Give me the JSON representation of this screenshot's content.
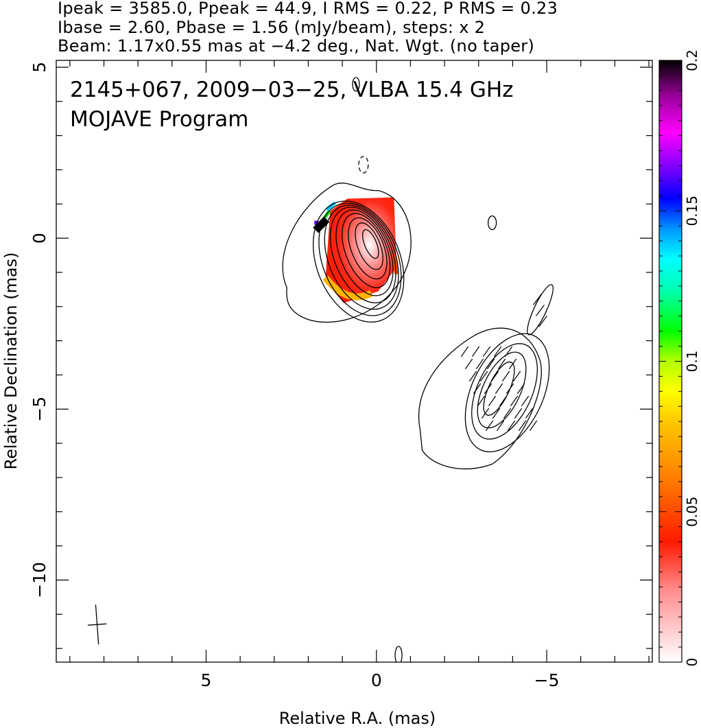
{
  "header": {
    "line1": "Ipeak = 3585.0, Ppeak = 44.9, I RMS = 0.22, P RMS = 0.23",
    "line2": "Ibase = 2.60, Pbase = 1.56 (mJy/beam), steps: x 2",
    "line3": "Beam: 1.17x0.55 mas at −4.2 deg., Nat. Wgt. (no taper)"
  },
  "chart_data": {
    "type": "heatmap",
    "title": "2145+067, 2009−03−25, VLBA 15.4 GHz",
    "subtitle": "MOJAVE Program",
    "xlabel": "Relative R.A. (mas)",
    "ylabel": "Relative Declination (mas)",
    "xlim": [
      9.4,
      -8.1
    ],
    "ylim": [
      -12.4,
      5.2
    ],
    "x_ticks": [
      {
        "value": 5,
        "label": "5"
      },
      {
        "value": 0,
        "label": "0"
      },
      {
        "value": -5,
        "label": "−5"
      }
    ],
    "y_ticks": [
      {
        "value": 5,
        "label": "5"
      },
      {
        "value": 0,
        "label": "0"
      },
      {
        "value": -5,
        "label": "−5"
      },
      {
        "value": -10,
        "label": "−10"
      }
    ],
    "colorbar": {
      "min": 0,
      "max": 0.2,
      "ticks": [
        {
          "value": 0,
          "label": "0"
        },
        {
          "value": 0.05,
          "label": "0.05"
        },
        {
          "value": 0.1,
          "label": "0.1"
        },
        {
          "value": 0.15,
          "label": "0.15"
        },
        {
          "value": 0.2,
          "label": "0.2"
        }
      ]
    },
    "core_component": {
      "ra": 0.05,
      "dec": -0.05,
      "contours": [
        {
          "w": 0.35,
          "h": 0.9
        },
        {
          "w": 0.65,
          "h": 1.45
        },
        {
          "w": 0.95,
          "h": 1.9
        },
        {
          "w": 1.2,
          "h": 2.3
        },
        {
          "w": 1.45,
          "h": 2.65
        },
        {
          "w": 1.7,
          "h": 2.95
        },
        {
          "w": 1.95,
          "h": 3.2
        },
        {
          "w": 2.2,
          "h": 3.45
        },
        {
          "w": 2.45,
          "h": 3.7
        }
      ]
    },
    "jet_component": {
      "ra": -3.6,
      "dec": -4.4,
      "contours": [
        {
          "w": 0.6,
          "h": 1.7
        },
        {
          "w": 1.1,
          "h": 2.4
        },
        {
          "w": 1.6,
          "h": 3.0
        },
        {
          "w": 2.1,
          "h": 3.7
        }
      ]
    },
    "beam": {
      "ra": 8.2,
      "dec": -11.3,
      "major": 1.17,
      "minor": 0.55,
      "pa_deg": -4.2
    }
  }
}
